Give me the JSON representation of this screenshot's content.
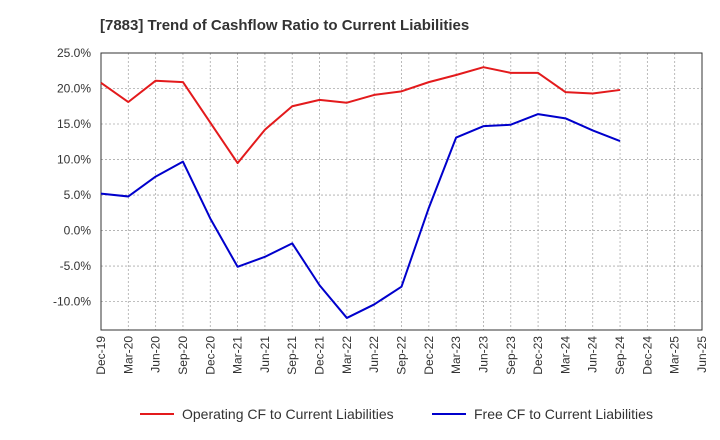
{
  "chart_data": {
    "type": "line",
    "title": "[7883]  Trend of Cashflow Ratio to Current Liabilities",
    "xlabel": "",
    "ylabel": "",
    "ylim": [
      -14,
      25
    ],
    "y_ticks": [
      25,
      20,
      15,
      10,
      5,
      0,
      -5,
      -10
    ],
    "y_tick_labels": [
      "25.0%",
      "20.0%",
      "15.0%",
      "10.0%",
      "5.0%",
      "0.0%",
      "-5.0%",
      "-10.0%"
    ],
    "x_tick_labels": [
      "Dec-19",
      "Mar-20",
      "Jun-20",
      "Sep-20",
      "Dec-20",
      "Mar-21",
      "Jun-21",
      "Sep-21",
      "Dec-21",
      "Mar-22",
      "Jun-22",
      "Sep-22",
      "Dec-22",
      "Mar-23",
      "Jun-23",
      "Sep-23",
      "Dec-23",
      "Mar-24",
      "Jun-24",
      "Sep-24",
      "Dec-24",
      "Mar-25",
      "Jun-25"
    ],
    "categories": [
      "Dec-19",
      "Mar-20",
      "Jun-20",
      "Sep-20",
      "Dec-20",
      "Mar-21",
      "Jun-21",
      "Sep-21",
      "Dec-21",
      "Mar-22",
      "Jun-22",
      "Sep-22",
      "Dec-22",
      "Mar-23",
      "Jun-23",
      "Sep-23",
      "Dec-23",
      "Mar-24",
      "Jun-24",
      "Sep-24"
    ],
    "grid": true,
    "legend_position": "bottom",
    "series": [
      {
        "name": "Operating CF to Current Liabilities",
        "color": "#e31a1c",
        "values": [
          20.8,
          18.1,
          21.1,
          20.9,
          15.2,
          9.5,
          14.2,
          17.5,
          18.4,
          18.0,
          19.1,
          19.6,
          20.9,
          21.9,
          23.0,
          22.2,
          22.2,
          19.5,
          19.3,
          19.8
        ]
      },
      {
        "name": "Free CF to Current Liabilities",
        "color": "#0000cc",
        "values": [
          5.2,
          4.8,
          7.6,
          9.7,
          1.7,
          -5.1,
          -3.7,
          -1.8,
          -7.7,
          -12.3,
          -10.4,
          -7.9,
          3.2,
          13.1,
          14.7,
          14.9,
          16.4,
          15.8,
          14.1,
          12.6
        ]
      }
    ]
  }
}
